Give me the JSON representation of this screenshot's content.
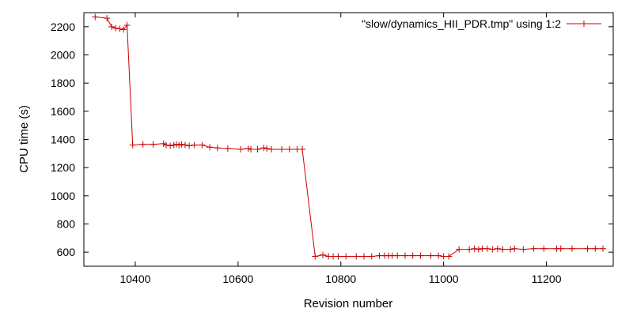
{
  "chart_data": {
    "type": "line",
    "title": "",
    "xlabel": "Revision number",
    "ylabel": "CPU time (s)",
    "xlim": [
      10300,
      11330
    ],
    "ylim": [
      500,
      2300
    ],
    "xticks": [
      10400,
      10600,
      10800,
      11000,
      11200
    ],
    "yticks": [
      600,
      800,
      1000,
      1200,
      1400,
      1600,
      1800,
      2000,
      2200
    ],
    "grid": false,
    "legend_position": "top-right",
    "series": [
      {
        "name": "\"slow/dynamics_HII_PDR.tmp\" using 1:2",
        "color": "#cc0000",
        "marker": "plus",
        "x": [
          10322,
          10345,
          10354,
          10362,
          10370,
          10377,
          10384,
          10395,
          10415,
          10435,
          10455,
          10460,
          10468,
          10475,
          10480,
          10485,
          10490,
          10497,
          10505,
          10515,
          10530,
          10545,
          10560,
          10580,
          10605,
          10620,
          10625,
          10638,
          10650,
          10656,
          10665,
          10685,
          10700,
          10715,
          10725,
          10750,
          10765,
          10776,
          10785,
          10795,
          10810,
          10830,
          10845,
          10860,
          10875,
          10885,
          10893,
          10900,
          10910,
          10925,
          10940,
          10955,
          10975,
          10990,
          11000,
          11010,
          11030,
          11050,
          11060,
          11068,
          11075,
          11085,
          11095,
          11105,
          11115,
          11130,
          11138,
          11155,
          11175,
          11195,
          11220,
          11228,
          11250,
          11280,
          11295,
          11310
        ],
        "y": [
          2270,
          2260,
          2200,
          2190,
          2185,
          2180,
          2210,
          1360,
          1365,
          1365,
          1370,
          1360,
          1355,
          1360,
          1365,
          1360,
          1365,
          1360,
          1355,
          1360,
          1360,
          1345,
          1340,
          1335,
          1330,
          1335,
          1330,
          1330,
          1340,
          1335,
          1330,
          1330,
          1330,
          1330,
          1330,
          570,
          580,
          570,
          570,
          570,
          570,
          570,
          570,
          570,
          575,
          575,
          575,
          575,
          575,
          575,
          575,
          575,
          575,
          575,
          570,
          570,
          620,
          620,
          625,
          620,
          625,
          625,
          620,
          625,
          620,
          620,
          625,
          620,
          625,
          625,
          625,
          625,
          625,
          625,
          625,
          625
        ]
      }
    ]
  }
}
